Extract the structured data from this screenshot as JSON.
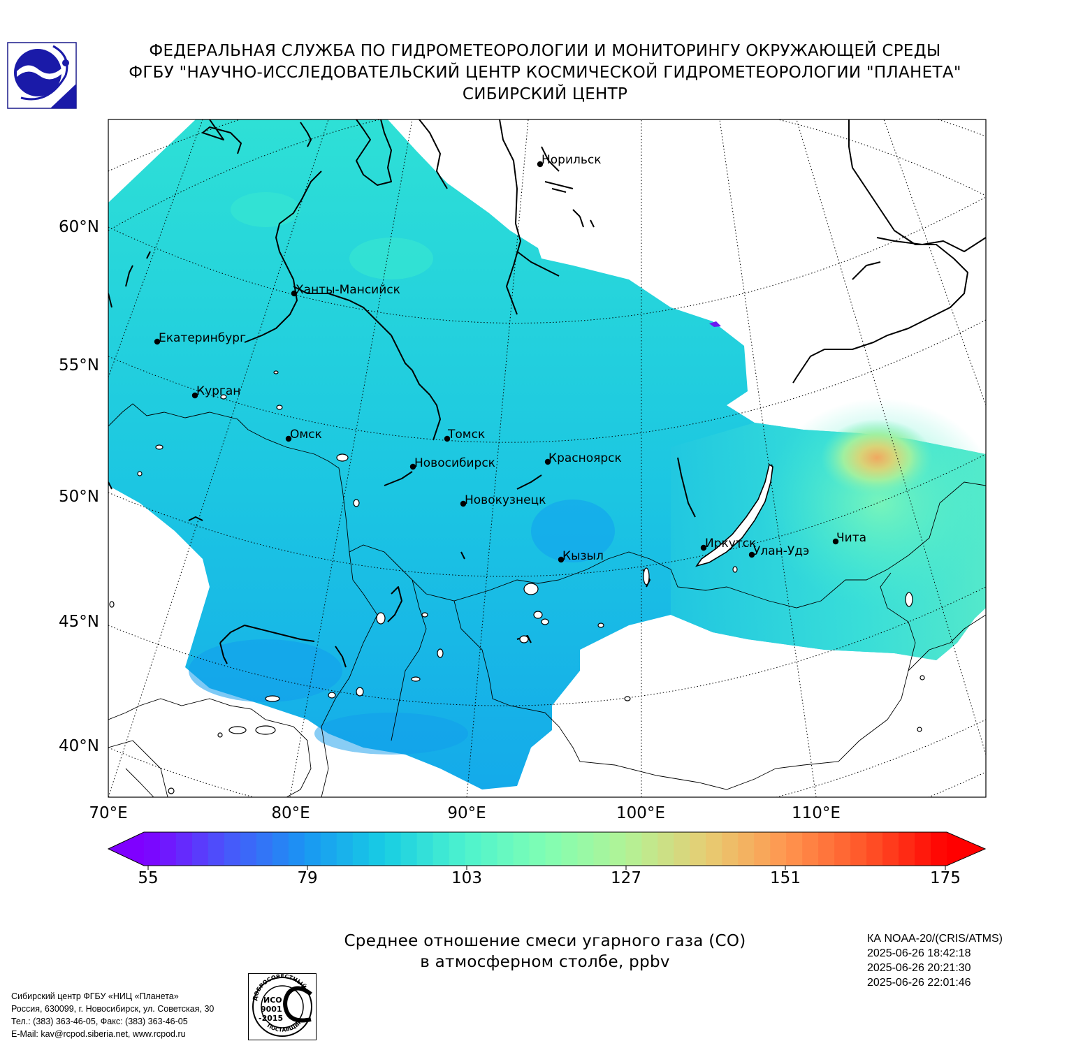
{
  "header": {
    "line1": "ФЕДЕРАЛЬНАЯ СЛУЖБА ПО ГИДРОМЕТЕОРОЛОГИИ И МОНИТОРИНГУ ОКРУЖАЮЩЕЙ СРЕДЫ",
    "line2": "ФГБУ \"НАУЧНО-ИССЛЕДОВАТЕЛЬСКИЙ ЦЕНТР КОСМИЧЕСКОЙ ГИДРОМЕТЕОРОЛОГИИ \"ПЛАНЕТА\"",
    "line3": "СИБИРСКИЙ ЦЕНТР"
  },
  "map": {
    "lat_labels": [
      "60°N",
      "55°N",
      "50°N",
      "45°N",
      "40°N"
    ],
    "lon_labels": [
      "70°E",
      "80°E",
      "90°E",
      "100°E",
      "110°E"
    ],
    "cities": [
      {
        "name": "Норильск"
      },
      {
        "name": "Ханты-Мансийск"
      },
      {
        "name": "Екатеринбург"
      },
      {
        "name": "Курган"
      },
      {
        "name": "Омск"
      },
      {
        "name": "Томск"
      },
      {
        "name": "Новосибирск"
      },
      {
        "name": "Красноярск"
      },
      {
        "name": "Новокузнецк"
      },
      {
        "name": "Кызыл"
      },
      {
        "name": "Иркутск"
      },
      {
        "name": "Улан-Удэ"
      },
      {
        "name": "Чита"
      }
    ]
  },
  "colorbar": {
    "ticks": [
      "55",
      "79",
      "103",
      "127",
      "151",
      "175"
    ],
    "min": 55,
    "max": 175,
    "colors": [
      "#7f00ff",
      "#4a54fb",
      "#1996f3",
      "#18cde3",
      "#4df3ce",
      "#80feb3",
      "#b2f396",
      "#e6cd73",
      "#ff964f",
      "#ff5428",
      "#ff0000"
    ]
  },
  "caption": {
    "line1": "Среднее отношение смеси угарного газа (CO)",
    "line2": "в атмосферном столбе, ppbv"
  },
  "satellite": {
    "name": "КА NOAA-20/(CRIS/ATMS)",
    "times": [
      "2025-06-26 18:42:18",
      "2025-06-26 20:21:30",
      "2025-06-26 22:01:46"
    ]
  },
  "contact": {
    "line1": "Сибирский центр ФГБУ «НИЦ «Планета»",
    "line2": "Россия, 630099, г. Новосибирск, ул. Советская, 30",
    "line3": "Тел.: (383) 363-46-05, Факс: (383) 363-46-05",
    "line4": "E-Mail: kav@rcpod.siberia.net, www.rcpod.ru"
  },
  "iso": {
    "top": "ДОБРОСОВЕСТНЫЙ",
    "l1": "ИСО",
    "l2": "9001",
    "l3": "-2015",
    "bottom": "ПОСТАВЩИК"
  }
}
